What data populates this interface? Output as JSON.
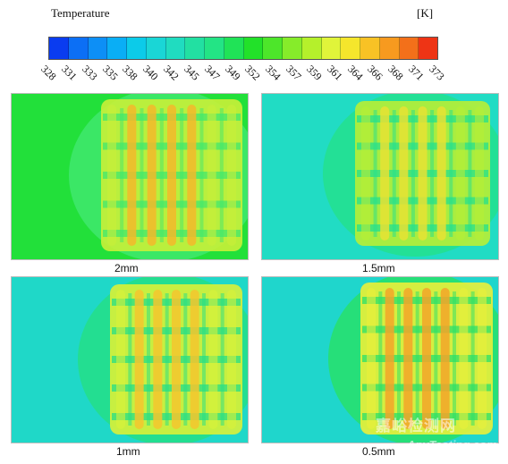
{
  "legend": {
    "title": "Temperature",
    "unit": "[K]",
    "ticks": [
      "328",
      "331",
      "333",
      "335",
      "338",
      "340",
      "342",
      "345",
      "347",
      "349",
      "352",
      "354",
      "357",
      "359",
      "361",
      "364",
      "366",
      "368",
      "371",
      "373"
    ],
    "colors": [
      "#0a3cf0",
      "#0c6ff5",
      "#0d8ff6",
      "#0aaef5",
      "#0ccbe9",
      "#1ad6d6",
      "#20dcc0",
      "#22e0a2",
      "#23e485",
      "#20e357",
      "#22e129",
      "#4de62a",
      "#86ec2a",
      "#b5f02b",
      "#e0f43a",
      "#f5e62c",
      "#f8c225",
      "#f79a1f",
      "#f3701a",
      "#ee3415"
    ]
  },
  "panels": [
    {
      "caption": "2mm",
      "bg": "#22e03a",
      "halo": "#3fe86e",
      "core": "#c9ef38",
      "hot": "#f3b82a"
    },
    {
      "caption": "1.5mm",
      "bg": "#21dcc4",
      "halo": "#23e08e",
      "core": "#b8ee36",
      "hot": "#e8e234"
    },
    {
      "caption": "1mm",
      "bg": "#1fd8c8",
      "halo": "#24df87",
      "core": "#d9f139",
      "hot": "#f4c52e"
    },
    {
      "caption": "0.5mm",
      "bg": "#1fd6cc",
      "halo": "#28e06a",
      "core": "#eaf03a",
      "hot": "#f3a529"
    }
  ],
  "watermark": {
    "text": "嘉峪检测网",
    "url": "AnyTesting.com"
  }
}
